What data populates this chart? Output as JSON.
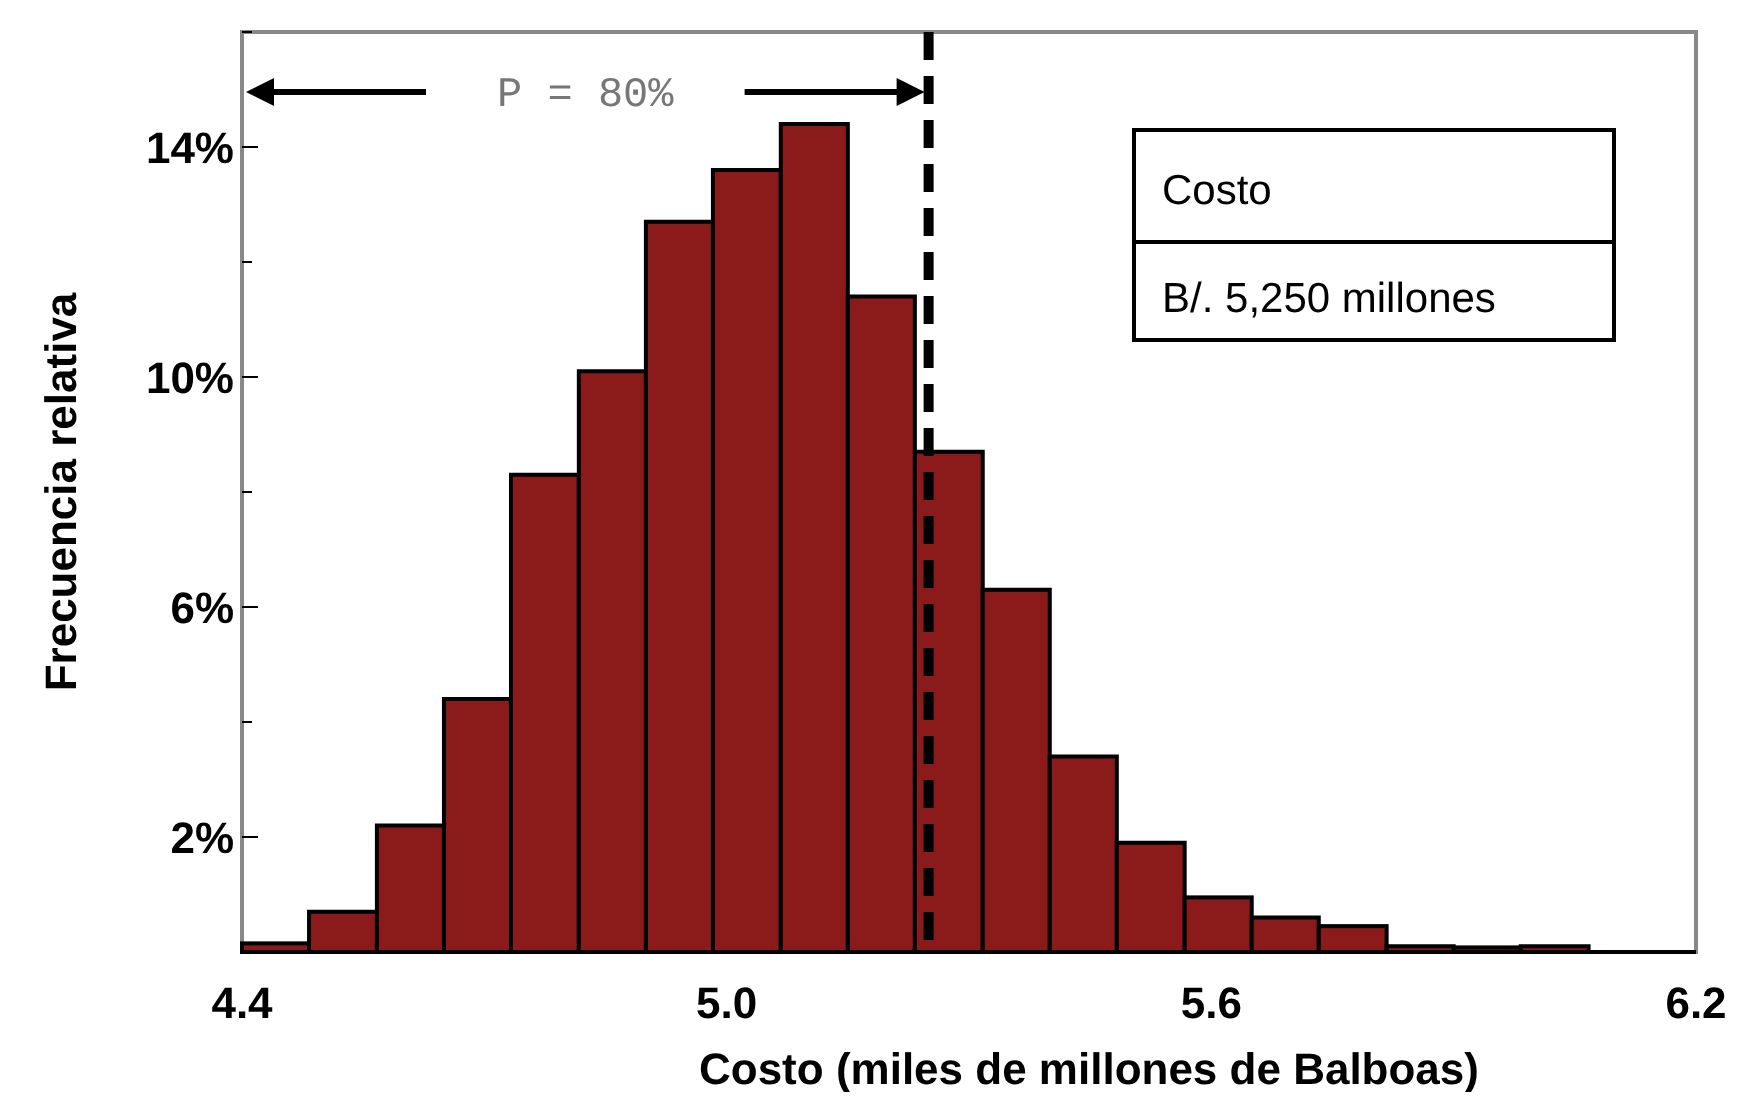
{
  "chart_data": {
    "type": "histogram",
    "xlabel": "Costo (miles de millones de Balboas)",
    "ylabel": "Frecuencia relativa",
    "bins": [
      4.4,
      4.483,
      4.567,
      4.65,
      4.733,
      4.817,
      4.9,
      4.983,
      5.067,
      5.15,
      5.233,
      5.317,
      5.4,
      5.483,
      5.567,
      5.65,
      5.733,
      5.817,
      5.9,
      5.983,
      6.067
    ],
    "values": [
      0.15,
      0.7,
      2.2,
      4.4,
      8.3,
      10.1,
      12.7,
      13.6,
      14.4,
      11.4,
      8.7,
      6.3,
      3.4,
      1.9,
      0.95,
      0.6,
      0.45,
      0.1,
      0.08,
      0.1
    ],
    "color": "#8b1a1a",
    "xlim": [
      4.4,
      6.2
    ],
    "xticks": [
      4.4,
      {
        "value": 5,
        "label": "5.0"
      },
      5.6,
      6.2
    ],
    "ylim": [
      0,
      16
    ],
    "yticks": [
      {
        "value": 2,
        "label": "2%"
      },
      {
        "value": 4,
        "label": null
      },
      {
        "value": 6,
        "label": "6%"
      },
      {
        "value": 8,
        "label": null
      },
      {
        "value": 10,
        "label": "10%"
      },
      {
        "value": 12,
        "label": null
      },
      {
        "value": 14,
        "label": "14%"
      },
      {
        "value": 16,
        "label": null
      }
    ],
    "ref_lines": [
      {
        "axis": "x",
        "value": 5.25,
        "line_style": "dashed",
        "color": "#000000"
      }
    ],
    "annotations": [
      "P = 80%",
      "Costo",
      "B/. 5,250 millones"
    ],
    "grid": false
  }
}
